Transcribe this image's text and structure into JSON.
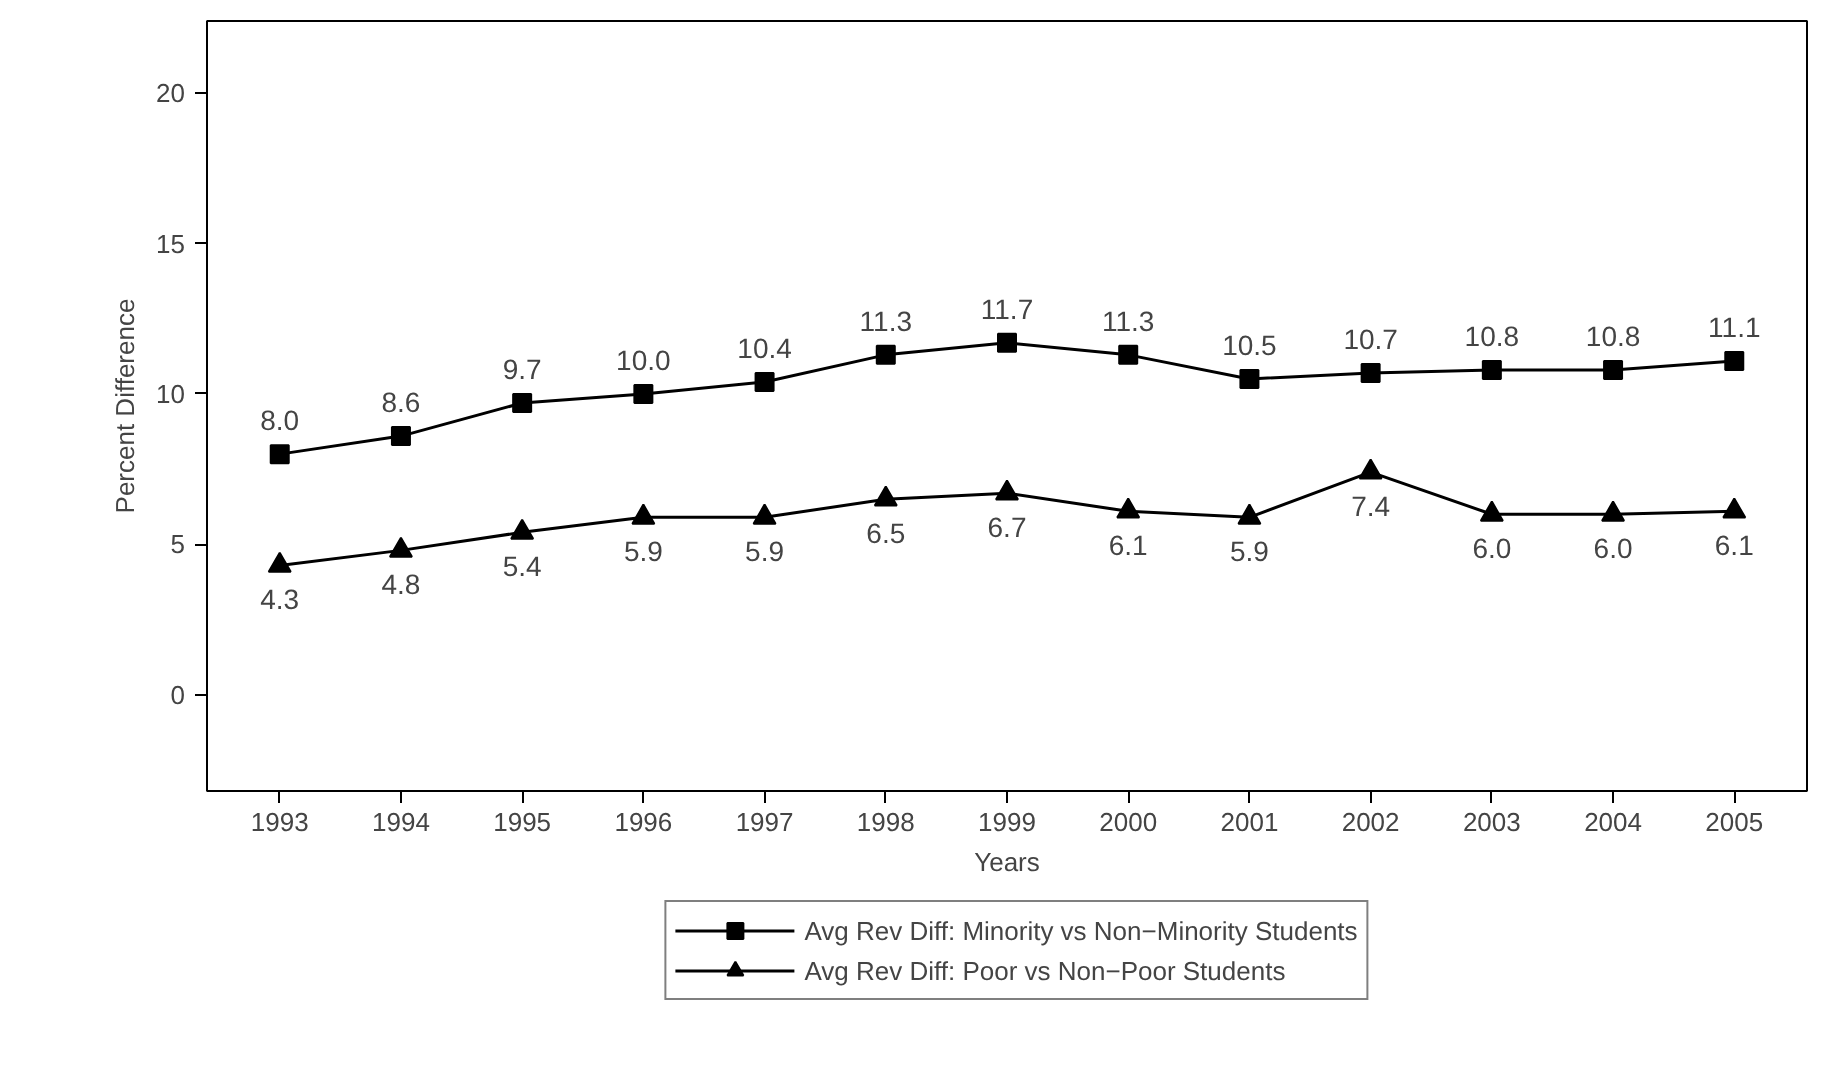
{
  "chart_data": {
    "type": "line",
    "xlabel": "Years",
    "ylabel": "Percent Difference",
    "x": [
      1993,
      1994,
      1995,
      1996,
      1997,
      1998,
      1999,
      2000,
      2001,
      2002,
      2003,
      2004,
      2005
    ],
    "xlim": [
      1992.4,
      2005.6
    ],
    "xticks": [
      1993,
      1994,
      1995,
      1996,
      1997,
      1998,
      1999,
      2000,
      2001,
      2002,
      2003,
      2004,
      2005
    ],
    "ylim": [
      -3.2,
      22.4
    ],
    "yticks": [
      0,
      5,
      10,
      15,
      20
    ],
    "series": [
      {
        "name": "Avg Rev Diff: Minority vs Non−Minority Students",
        "color": "#000000",
        "marker": "square",
        "values": [
          8.0,
          8.6,
          9.7,
          10.0,
          10.4,
          11.3,
          11.7,
          11.3,
          10.5,
          10.7,
          10.8,
          10.8,
          11.1
        ],
        "value_labels": [
          "8.0",
          "8.6",
          "9.7",
          "10.0",
          "10.4",
          "11.3",
          "11.7",
          "11.3",
          "10.5",
          "10.7",
          "10.8",
          "10.8",
          "11.1"
        ]
      },
      {
        "name": "Avg Rev Diff: Poor vs Non−Poor Students",
        "color": "#000000",
        "marker": "triangle",
        "values": [
          4.3,
          4.8,
          5.4,
          5.9,
          5.9,
          6.5,
          6.7,
          6.1,
          5.9,
          7.4,
          6.0,
          6.0,
          6.1
        ],
        "value_labels": [
          "4.3",
          "4.8",
          "5.4",
          "5.9",
          "5.9",
          "6.5",
          "6.7",
          "6.1",
          "5.9",
          "7.4",
          "6.0",
          "6.0",
          "6.1"
        ]
      }
    ],
    "grid": false,
    "legend": "bottom",
    "line_style": "solid"
  }
}
